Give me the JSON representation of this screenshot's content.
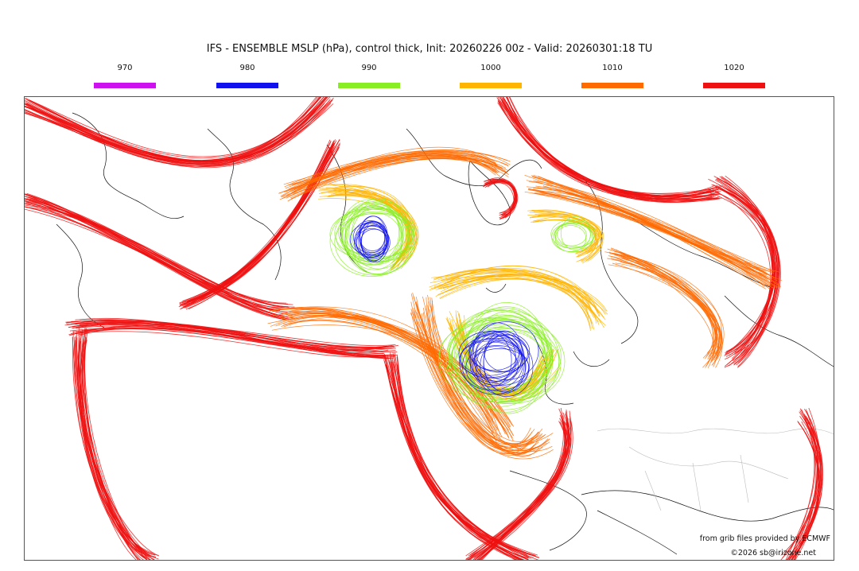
{
  "title": "IFS - ENSEMBLE MSLP (hPa), control thick, Init: 20260226 00z - Valid: 20260301:18 TU",
  "legend": [
    {
      "label": "970",
      "color": "#cc11ee"
    },
    {
      "label": "980",
      "color": "#1111ee"
    },
    {
      "label": "990",
      "color": "#88ee22"
    },
    {
      "label": "1000",
      "color": "#ffb400"
    },
    {
      "label": "1010",
      "color": "#ff6a00"
    },
    {
      "label": "1020",
      "color": "#ee1111"
    }
  ],
  "credits": {
    "source": "from grib files provided by ECMWF",
    "copyright": "©2026 sb@irizone.net"
  }
}
